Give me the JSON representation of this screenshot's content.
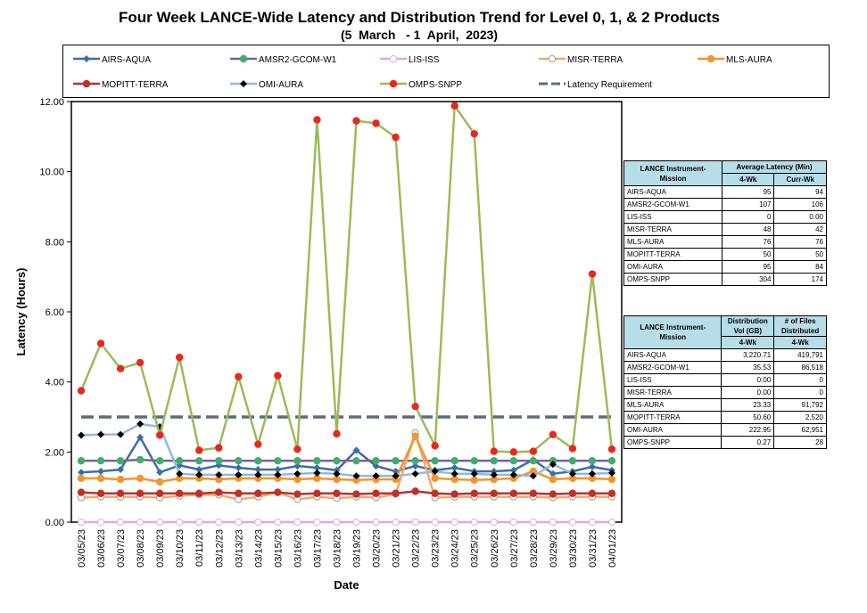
{
  "title": "Four Week LANCE-Wide Latency and Distribution Trend for Level 0, 1, & 2 Products",
  "subtitle": "(5  March   - 1  April,  2023)",
  "chart_data": {
    "type": "line",
    "title": "Four Week LANCE-Wide Latency and Distribution Trend for Level 0, 1, & 2 Products",
    "subtitle": "(5  March   - 1  April,  2023)",
    "xlabel": "Date",
    "ylabel": "Latency (Hours)",
    "ylim": [
      0,
      12
    ],
    "yticks": [
      "0.00",
      "2.00",
      "4.00",
      "6.00",
      "8.00",
      "10.00",
      "12.00"
    ],
    "grid": false,
    "legend_position": "top",
    "categories": [
      "03/05/23",
      "03/06/23",
      "03/07/23",
      "03/08/23",
      "03/09/23",
      "03/10/23",
      "03/11/23",
      "03/12/23",
      "03/13/23",
      "03/14/23",
      "03/15/23",
      "03/16/23",
      "03/17/23",
      "03/18/23",
      "03/19/23",
      "03/20/23",
      "03/21/23",
      "03/22/23",
      "03/23/23",
      "03/24/23",
      "03/25/23",
      "03/26/23",
      "03/27/23",
      "03/28/23",
      "03/29/23",
      "03/30/23",
      "03/31/23",
      "04/01/23"
    ],
    "series": [
      {
        "name": "AIRS-AQUA",
        "color": "#3c6ea5",
        "marker": "diamond",
        "values": [
          1.42,
          1.45,
          1.5,
          2.42,
          1.42,
          1.62,
          1.5,
          1.62,
          1.55,
          1.5,
          1.5,
          1.6,
          1.55,
          1.48,
          2.05,
          1.6,
          1.45,
          1.6,
          1.48,
          1.55,
          1.45,
          1.45,
          1.48,
          1.78,
          1.38,
          1.45,
          1.58,
          1.48
        ]
      },
      {
        "name": "AMSR2-GCOM-W1",
        "color": "#7a5fa5",
        "marker": "circle",
        "values": [
          1.75,
          1.75,
          1.75,
          1.78,
          1.75,
          1.75,
          1.75,
          1.75,
          1.75,
          1.75,
          1.75,
          1.75,
          1.75,
          1.75,
          1.75,
          1.75,
          1.75,
          1.75,
          1.75,
          1.75,
          1.75,
          1.75,
          1.75,
          1.75,
          1.75,
          1.75,
          1.75,
          1.75
        ]
      },
      {
        "name": "LIS-ISS",
        "color": "#e3a8d8",
        "marker": "circle-open",
        "values": [
          0,
          0,
          0,
          0,
          0,
          0,
          0,
          0,
          0,
          0,
          0,
          0,
          0,
          0,
          0,
          0,
          0,
          0,
          0,
          0,
          0,
          0,
          0,
          0,
          0,
          0,
          0,
          0
        ]
      },
      {
        "name": "MISR-TERRA",
        "color": "#f0a96b",
        "marker": "circle-open",
        "values": [
          0.7,
          0.72,
          0.72,
          0.72,
          0.7,
          0.75,
          0.78,
          0.78,
          0.65,
          0.72,
          0.85,
          0.65,
          0.72,
          0.68,
          0.72,
          0.7,
          0.8,
          2.55,
          0.7,
          0.72,
          0.72,
          0.72,
          0.72,
          0.72,
          0.7,
          0.72,
          0.72,
          0.72
        ]
      },
      {
        "name": "MLS-AURA",
        "color": "#f0962e",
        "marker": "circle",
        "values": [
          1.25,
          1.25,
          1.22,
          1.25,
          1.15,
          1.25,
          1.25,
          1.22,
          1.25,
          1.25,
          1.25,
          1.22,
          1.25,
          1.22,
          1.2,
          1.22,
          1.22,
          2.45,
          1.25,
          1.22,
          1.2,
          1.22,
          1.25,
          1.45,
          1.22,
          1.25,
          1.25,
          1.22
        ]
      },
      {
        "name": "MOPITT-TERRA",
        "color": "#c0302a",
        "marker": "circle",
        "values": [
          0.85,
          0.82,
          0.82,
          0.82,
          0.82,
          0.82,
          0.82,
          0.85,
          0.82,
          0.82,
          0.85,
          0.8,
          0.82,
          0.82,
          0.8,
          0.82,
          0.82,
          0.88,
          0.82,
          0.8,
          0.82,
          0.82,
          0.82,
          0.82,
          0.8,
          0.82,
          0.82,
          0.82
        ]
      },
      {
        "name": "OMI-AURA",
        "color": "#93b8e3",
        "marker": "diamond",
        "values": [
          2.48,
          2.5,
          2.5,
          2.8,
          2.72,
          1.38,
          1.35,
          1.35,
          1.35,
          1.35,
          1.35,
          1.38,
          1.4,
          1.38,
          1.32,
          1.32,
          1.32,
          1.38,
          1.45,
          1.38,
          1.38,
          1.35,
          1.35,
          1.32,
          1.65,
          1.38,
          1.38,
          1.4
        ]
      },
      {
        "name": "OMPS-SNPP",
        "color": "#9bbb59",
        "marker": "circle",
        "values": [
          3.75,
          5.1,
          4.38,
          4.55,
          2.48,
          4.7,
          2.05,
          2.12,
          4.15,
          2.22,
          4.18,
          2.08,
          11.48,
          2.52,
          11.45,
          11.38,
          10.98,
          3.3,
          2.18,
          11.88,
          11.08,
          2.02,
          2.0,
          2.02,
          2.5,
          2.1,
          7.08,
          2.08
        ]
      },
      {
        "name": "Latency Requirement",
        "color": "#5f6b7a",
        "marker": "none",
        "values": [
          3,
          3,
          3,
          3,
          3,
          3,
          3,
          3,
          3,
          3,
          3,
          3,
          3,
          3,
          3,
          3,
          3,
          3,
          3,
          3,
          3,
          3,
          3,
          3,
          3,
          3,
          3,
          3
        ]
      }
    ]
  },
  "latency_table": {
    "col1_header": "LANCE Instrument-Mission",
    "col2_header": "Average Latency (Min)",
    "sub_a": "4-Wk",
    "sub_b": "Curr-Wk",
    "rows": [
      {
        "name": "AIRS-AQUA",
        "a": "95",
        "b": "94"
      },
      {
        "name": "AMSR2-GCOM-W1",
        "a": "107",
        "b": "106"
      },
      {
        "name": "LIS-ISS",
        "a": "0",
        "b": "0.00"
      },
      {
        "name": "MISR-TERRA",
        "a": "48",
        "b": "42"
      },
      {
        "name": "MLS-AURA",
        "a": "76",
        "b": "76"
      },
      {
        "name": "MOPITT-TERRA",
        "a": "50",
        "b": "50"
      },
      {
        "name": "OMI-AURA",
        "a": "95",
        "b": "84"
      },
      {
        "name": "OMPS-SNPP",
        "a": "304",
        "b": "174"
      }
    ]
  },
  "distribution_table": {
    "col1_header": "LANCE Instrument-Mission",
    "col2_header": "Distribution Vol (GB)",
    "col3_header": "# of Files Distributed",
    "sub_a": "4-Wk",
    "sub_b": "4-Wk",
    "rows": [
      {
        "name": "AIRS-AQUA",
        "a": "3,220.71",
        "b": "419,791"
      },
      {
        "name": "AMSR2-GCOM-W1",
        "a": "35.53",
        "b": "86,518"
      },
      {
        "name": "LIS-ISS",
        "a": "0.00",
        "b": "0"
      },
      {
        "name": "MISR-TERRA",
        "a": "0.00",
        "b": "0"
      },
      {
        "name": "MLS-AURA",
        "a": "23.33",
        "b": "91,792"
      },
      {
        "name": "MOPITT-TERRA",
        "a": "50.60",
        "b": "2,520"
      },
      {
        "name": "OMI-AURA",
        "a": "222.95",
        "b": "62,951"
      },
      {
        "name": "OMPS-SNPP",
        "a": "0.27",
        "b": "28"
      }
    ]
  }
}
